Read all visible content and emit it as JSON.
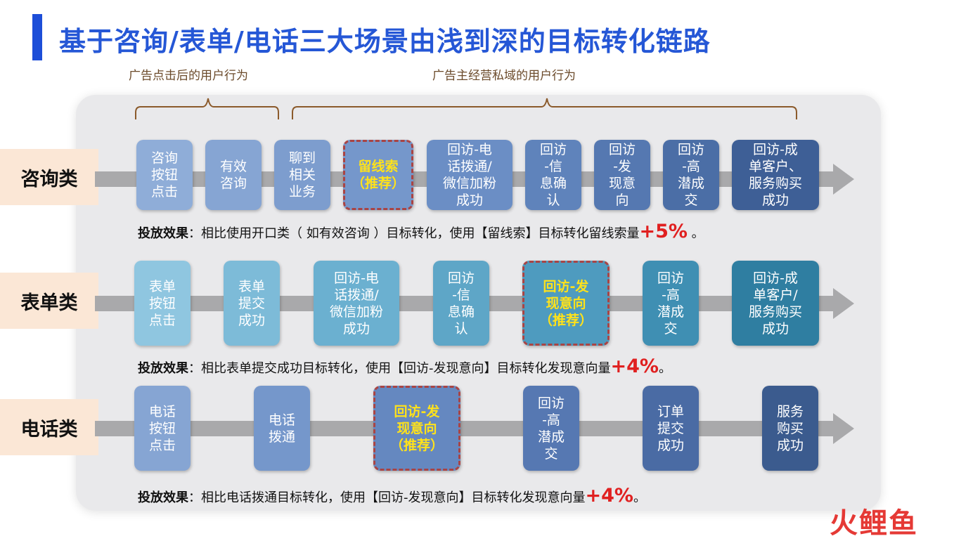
{
  "title": "基于咨询/表单/电话三大场景由浅到深的目标转化链路",
  "brackets": {
    "left": "广告点击后的用户行为",
    "right": "广告主经营私域的用户行为"
  },
  "rows": [
    {
      "label": "咨询类",
      "boxes": [
        "咨询\n按钮\n点击",
        "有效\n咨询",
        "聊到\n相关\n业务",
        "留线索\n（推荐）",
        "回访-电\n话拨通/\n微信加粉\n成功",
        "回访\n-信\n息确\n认",
        "回访\n-发\n现意\n向",
        "回访\n-高\n潜成\n交",
        "回访-成\n单客户、\n服务购买\n成功"
      ],
      "effect": {
        "prefix": "投放效果",
        "text": "：相比使用开口类（  如有效咨询  ）目标转化，使用【留线索】目标转化留线索量",
        "pct": "+5%",
        "suffix": " 。"
      }
    },
    {
      "label": "表单类",
      "boxes": [
        "表单\n按钮\n点击",
        "表单\n提交\n成功",
        "回访-电\n话拨通/\n微信加粉\n成功",
        "回访\n-信\n息确\n认",
        "回访-发\n现意向\n（推荐）",
        "回访\n-高\n潜成\n交",
        "回访-成\n单客户/\n服务购买\n成功"
      ],
      "effect": {
        "prefix": "投放效果",
        "text": "：相比表单提交成功目标转化，使用【回访-发现意向】目标转化发现意向量",
        "pct": "+4%",
        "suffix": "。"
      }
    },
    {
      "label": "电话类",
      "boxes": [
        "电话\n按钮\n点击",
        "电话\n拨通",
        "回访-发\n现意向\n（推荐）",
        "回访\n-高\n潜成\n交",
        "订单\n提交\n成功",
        "服务\n购买\n成功"
      ],
      "effect": {
        "prefix": "投放效果",
        "text": "：相比电话拨通目标转化，使用【回访-发现意向】目标转化发现意向量",
        "pct": "+4%",
        "suffix": "。"
      }
    }
  ],
  "watermark": "火鲤鱼",
  "colors": {
    "title": "#2557d6",
    "highlight_text": "#ffe21a",
    "highlight_border": "#a94444",
    "pct": "#e02020"
  }
}
